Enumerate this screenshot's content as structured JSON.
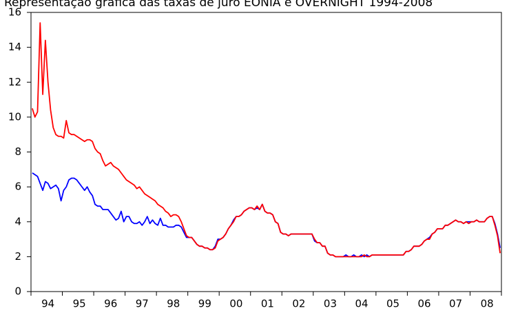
{
  "chart_data": {
    "type": "line",
    "title": "Representação gráfica das taxas de juro EONIA e OVERNIGHT 1994-2008",
    "categories": [
      null,
      null,
      null,
      null,
      null,
      null,
      "94",
      null,
      null,
      null,
      null,
      null,
      null,
      null,
      null,
      null,
      null,
      null,
      "95",
      null,
      null,
      null,
      null,
      null,
      null,
      null,
      null,
      null,
      null,
      null,
      "96",
      null,
      null,
      null,
      null,
      null,
      null,
      null,
      null,
      null,
      null,
      null,
      "97",
      null,
      null,
      null,
      null,
      null,
      null,
      null,
      null,
      null,
      null,
      null,
      "98",
      null,
      null,
      null,
      null,
      null,
      null,
      null,
      null,
      null,
      null,
      null,
      "99",
      null,
      null,
      null,
      null,
      null,
      null,
      null,
      null,
      null,
      null,
      null,
      "00",
      null,
      null,
      null,
      null,
      null,
      null,
      null,
      null,
      null,
      null,
      null,
      "01",
      null,
      null,
      null,
      null,
      null,
      null,
      null,
      null,
      null,
      null,
      null,
      "02",
      null,
      null,
      null,
      null,
      null,
      null,
      null,
      null,
      null,
      null,
      null,
      "03",
      null,
      null,
      null,
      null,
      null,
      null,
      null,
      null,
      null,
      null,
      null,
      "04",
      null,
      null,
      null,
      null,
      null,
      null,
      null,
      null,
      null,
      null,
      null,
      "05",
      null,
      null,
      null,
      null,
      null,
      null,
      null,
      null,
      null,
      null,
      null,
      "06",
      null,
      null,
      null,
      null,
      null,
      null,
      null,
      null,
      null,
      null,
      null,
      "07",
      null,
      null,
      null,
      null,
      null,
      null,
      null,
      null,
      null,
      null,
      null,
      "08",
      null,
      null,
      null,
      null,
      null
    ],
    "series": [
      {
        "color": "#0000ff",
        "values": [
          6.8,
          6.7,
          6.6,
          6.2,
          5.8,
          6.3,
          6.2,
          5.9,
          6.0,
          6.1,
          5.9,
          5.2,
          5.8,
          6.0,
          6.4,
          6.5,
          6.5,
          6.4,
          6.2,
          6.0,
          5.8,
          6.0,
          5.7,
          5.5,
          5.0,
          4.9,
          4.9,
          4.7,
          4.7,
          4.7,
          4.5,
          4.3,
          4.1,
          4.2,
          4.6,
          4.0,
          4.3,
          4.3,
          4.0,
          3.9,
          3.9,
          4.0,
          3.8,
          4.0,
          4.3,
          3.9,
          4.1,
          3.9,
          3.8,
          4.2,
          3.8,
          3.8,
          3.7,
          3.7,
          3.7,
          3.8,
          3.8,
          3.7,
          3.4,
          3.1,
          3.1,
          3.1,
          2.9,
          2.7,
          2.6,
          2.6,
          2.5,
          2.5,
          2.4,
          2.4,
          2.6,
          3.0,
          3.0,
          3.1,
          3.3,
          3.6,
          3.8,
          4.1,
          4.3,
          4.3,
          4.4,
          4.6,
          4.7,
          4.8,
          4.8,
          4.7,
          4.8,
          4.7,
          5.0,
          4.6,
          4.5,
          4.5,
          4.4,
          4.0,
          3.9,
          3.4,
          3.3,
          3.3,
          3.2,
          3.3,
          3.3,
          3.3,
          3.3,
          3.3,
          3.3,
          3.3,
          3.3,
          3.3,
          2.9,
          2.8,
          2.8,
          2.6,
          2.6,
          2.2,
          2.1,
          2.1,
          2.0,
          2.0,
          2.0,
          2.0,
          2.1,
          2.0,
          2.0,
          2.1,
          2.0,
          2.0,
          2.1,
          2.0,
          2.1,
          2.0,
          2.1,
          2.1,
          2.1,
          2.1,
          2.1,
          2.1,
          2.1,
          2.1,
          2.1,
          2.1,
          2.1,
          2.1,
          2.1,
          2.3,
          2.3,
          2.4,
          2.6,
          2.6,
          2.6,
          2.7,
          2.9,
          3.0,
          3.1,
          3.3,
          3.4,
          3.6,
          3.6,
          3.6,
          3.8,
          3.8,
          3.9,
          4.0,
          4.1,
          4.0,
          4.0,
          3.9,
          4.0,
          4.0,
          4.0,
          4.0,
          4.1,
          4.0,
          4.0,
          4.0,
          4.2,
          4.3,
          4.3,
          3.9,
          3.3,
          2.5
        ]
      },
      {
        "color": "#ff0000",
        "values": [
          10.5,
          10.0,
          10.3,
          15.4,
          11.3,
          14.4,
          12.0,
          10.4,
          9.4,
          9.0,
          8.9,
          8.9,
          8.8,
          9.8,
          9.1,
          9.0,
          9.0,
          8.9,
          8.8,
          8.7,
          8.6,
          8.7,
          8.7,
          8.6,
          8.2,
          8.0,
          7.9,
          7.5,
          7.2,
          7.3,
          7.4,
          7.2,
          7.1,
          7.0,
          6.8,
          6.6,
          6.4,
          6.3,
          6.2,
          6.1,
          5.9,
          6.0,
          5.8,
          5.6,
          5.5,
          5.4,
          5.3,
          5.2,
          5.0,
          4.9,
          4.8,
          4.6,
          4.5,
          4.3,
          4.4,
          4.4,
          4.3,
          4.0,
          3.6,
          3.2,
          3.1,
          3.1,
          2.9,
          2.7,
          2.6,
          2.6,
          2.5,
          2.5,
          2.4,
          2.4,
          2.5,
          2.9,
          3.0,
          3.1,
          3.3,
          3.6,
          3.8,
          4.0,
          4.3,
          4.3,
          4.4,
          4.6,
          4.7,
          4.8,
          4.8,
          4.7,
          4.9,
          4.7,
          5.0,
          4.6,
          4.5,
          4.5,
          4.4,
          4.0,
          3.9,
          3.4,
          3.3,
          3.3,
          3.2,
          3.3,
          3.3,
          3.3,
          3.3,
          3.3,
          3.3,
          3.3,
          3.3,
          3.3,
          3.0,
          2.8,
          2.8,
          2.6,
          2.6,
          2.2,
          2.1,
          2.1,
          2.0,
          2.0,
          2.0,
          2.0,
          2.0,
          2.0,
          2.0,
          2.0,
          2.0,
          2.0,
          2.0,
          2.1,
          2.0,
          2.0,
          2.1,
          2.1,
          2.1,
          2.1,
          2.1,
          2.1,
          2.1,
          2.1,
          2.1,
          2.1,
          2.1,
          2.1,
          2.1,
          2.3,
          2.3,
          2.4,
          2.6,
          2.6,
          2.6,
          2.7,
          2.9,
          3.0,
          3.0,
          3.3,
          3.4,
          3.6,
          3.6,
          3.6,
          3.8,
          3.8,
          3.9,
          4.0,
          4.1,
          4.0,
          4.0,
          3.9,
          4.0,
          3.9,
          4.0,
          4.0,
          4.1,
          4.0,
          4.0,
          4.0,
          4.2,
          4.3,
          4.3,
          3.8,
          3.2,
          2.2
        ]
      }
    ],
    "ylim": [
      0,
      16
    ],
    "yticks": [
      0,
      2,
      4,
      6,
      8,
      10,
      12,
      14,
      16
    ]
  }
}
